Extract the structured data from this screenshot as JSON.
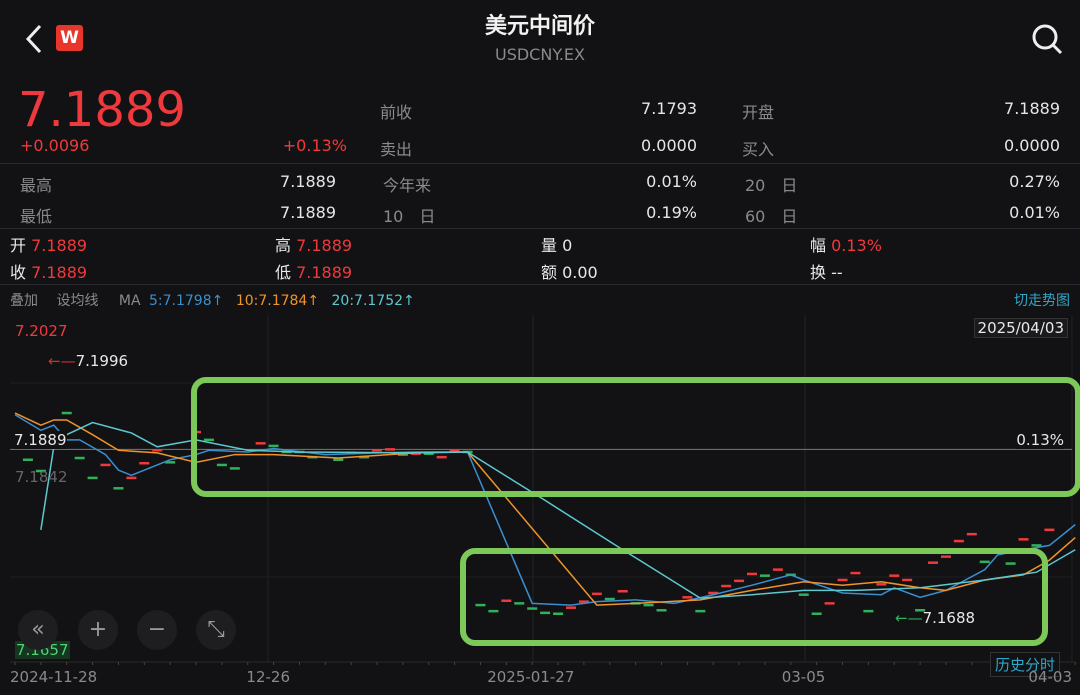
{
  "header": {
    "title": "美元中间价",
    "symbol": "USDCNY.EX",
    "logo_text": "W",
    "back_icon": "chevron-left-icon",
    "search_icon": "search-icon"
  },
  "quote": {
    "price": "7.1889",
    "change": "+0.0096",
    "change_pct": "+0.13%",
    "prev_close_label": "前收",
    "prev_close": "7.1793",
    "open_label": "开盘",
    "open": "7.1889",
    "sell_label": "卖出",
    "sell": "0.0000",
    "buy_label": "买入",
    "buy": "0.0000",
    "high_label": "最高",
    "high": "7.1889",
    "ytd_label": "今年来",
    "ytd": "0.01%",
    "d20_label": "20　日",
    "d20": "0.27%",
    "low_label": "最低",
    "low": "7.1889",
    "d10_label": "10　日",
    "d10": "0.19%",
    "d60_label": "60　日",
    "d60": "0.01%"
  },
  "ohlc": {
    "open_label": "开",
    "open": "7.1889",
    "high_label": "高",
    "high": "7.1889",
    "vol_label": "量",
    "vol": "0",
    "amp_label": "幅",
    "amp": "0.13%",
    "close_label": "收",
    "close": "7.1889",
    "low_label": "低",
    "low": "7.1889",
    "amt_label": "额",
    "amt": "0.00",
    "turn_label": "换",
    "turn": "--"
  },
  "toolbar": {
    "overlay": "叠加",
    "set_ma": "设均线",
    "ma": "MA",
    "ma5": "5:7.1798↑",
    "ma10": "10:7.1784↑",
    "ma20": "20:7.1752↑",
    "switch": "切走势图"
  },
  "colors": {
    "up": "#f0393c",
    "down": "#2fb25a",
    "ma5": "#3a8fd0",
    "ma10": "#f0932b",
    "ma20": "#5cc8d0",
    "highlight": "#7cc95a",
    "accent": "#2fa6c8"
  },
  "chart": {
    "date": "2025/04/03",
    "history_button": "历史分时",
    "zoom_buttons": [
      "«",
      "+",
      "−",
      "⤡"
    ]
  },
  "chart_data": {
    "type": "line",
    "ylim": [
      7.1657,
      7.2027
    ],
    "ytick_top": "7.2027",
    "ytick_bottom": "7.1657",
    "ytick_mid": "7.1842",
    "current_label": "7.1889",
    "current_pct": "0.13%",
    "max_label": "7.1996",
    "min_label": "7.1688",
    "x_ticks": [
      {
        "i": 0,
        "label": "2024-11-28"
      },
      {
        "i": 19.6,
        "label": "12-26"
      },
      {
        "i": 40,
        "label": "2025-01-27"
      },
      {
        "i": 61,
        "label": "03-05"
      },
      {
        "i": 82,
        "label": "04-03"
      }
    ],
    "series": [
      {
        "name": "MA5",
        "color": "#3a8fd0",
        "points": [
          [
            0,
            7.1929
          ],
          [
            2,
            7.1911
          ],
          [
            3,
            7.1917
          ],
          [
            4,
            7.19
          ],
          [
            5,
            7.19
          ],
          [
            7,
            7.1883
          ],
          [
            8,
            7.1865
          ],
          [
            9,
            7.1859
          ],
          [
            11,
            7.1871
          ],
          [
            12,
            7.1877
          ],
          [
            14,
            7.1883
          ],
          [
            15,
            7.1888
          ],
          [
            18,
            7.1886
          ],
          [
            20,
            7.189
          ],
          [
            24,
            7.1883
          ],
          [
            28,
            7.1885
          ],
          [
            31,
            7.1886
          ],
          [
            35,
            7.1886
          ],
          [
            40,
            7.1711
          ],
          [
            43,
            7.1709
          ],
          [
            45,
            7.1713
          ],
          [
            48,
            7.1715
          ],
          [
            51,
            7.1711
          ],
          [
            54,
            7.1721
          ],
          [
            57,
            7.1732
          ],
          [
            60,
            7.1744
          ],
          [
            61,
            7.1738
          ],
          [
            64,
            7.1723
          ],
          [
            67,
            7.1721
          ],
          [
            68,
            7.1729
          ],
          [
            70,
            7.1718
          ],
          [
            72,
            7.1726
          ],
          [
            75,
            7.175
          ],
          [
            76,
            7.1767
          ],
          [
            78,
            7.1773
          ],
          [
            80,
            7.1778
          ],
          [
            82,
            7.1802
          ]
        ]
      },
      {
        "name": "MA10",
        "color": "#f0932b",
        "points": [
          [
            0,
            7.1931
          ],
          [
            2,
            7.1917
          ],
          [
            3,
            7.1923
          ],
          [
            4,
            7.1923
          ],
          [
            6,
            7.1906
          ],
          [
            8,
            7.1888
          ],
          [
            11,
            7.1885
          ],
          [
            14,
            7.1874
          ],
          [
            17,
            7.1883
          ],
          [
            20,
            7.1883
          ],
          [
            25,
            7.1879
          ],
          [
            31,
            7.1885
          ],
          [
            35,
            7.1886
          ],
          [
            45,
            7.1709
          ],
          [
            48,
            7.1711
          ],
          [
            53,
            7.1715
          ],
          [
            57,
            7.1726
          ],
          [
            61,
            7.1736
          ],
          [
            64,
            7.1732
          ],
          [
            67,
            7.1736
          ],
          [
            70,
            7.1729
          ],
          [
            72,
            7.1726
          ],
          [
            75,
            7.1738
          ],
          [
            78,
            7.1744
          ],
          [
            80,
            7.1761
          ],
          [
            82,
            7.1787
          ]
        ]
      },
      {
        "name": "MA20",
        "color": "#5cc8d0",
        "points": [
          [
            2,
            7.1796
          ],
          [
            3,
            7.1892
          ],
          [
            4,
            7.1906
          ],
          [
            6,
            7.192
          ],
          [
            9,
            7.1908
          ],
          [
            11,
            7.1892
          ],
          [
            14,
            7.19
          ],
          [
            18,
            7.1888
          ],
          [
            22,
            7.1886
          ],
          [
            30,
            7.1885
          ],
          [
            35,
            7.1886
          ],
          [
            41,
            7.183
          ],
          [
            47,
            7.1773
          ],
          [
            53,
            7.1717
          ],
          [
            57,
            7.1721
          ],
          [
            61,
            7.1726
          ],
          [
            65,
            7.1726
          ],
          [
            70,
            7.1729
          ],
          [
            75,
            7.1738
          ],
          [
            79,
            7.1747
          ],
          [
            82,
            7.1773
          ]
        ]
      }
    ],
    "daily": [
      [
        1,
        7.1877,
        "down"
      ],
      [
        2,
        7.1864,
        "down"
      ],
      [
        4,
        7.1931,
        "down"
      ],
      [
        5,
        7.1879,
        "down"
      ],
      [
        6,
        7.1856,
        "down"
      ],
      [
        7,
        7.1871,
        "up"
      ],
      [
        8,
        7.1844,
        "down"
      ],
      [
        9,
        7.1856,
        "up"
      ],
      [
        10,
        7.1873,
        "up"
      ],
      [
        11,
        7.1888,
        "up"
      ],
      [
        12,
        7.1874,
        "down"
      ],
      [
        14,
        7.1909,
        "up"
      ],
      [
        15,
        7.19,
        "down"
      ],
      [
        16,
        7.1871,
        "down"
      ],
      [
        17,
        7.1867,
        "down"
      ],
      [
        19,
        7.1896,
        "up"
      ],
      [
        20,
        7.1893,
        "down"
      ],
      [
        21,
        7.1886,
        "down"
      ],
      [
        22,
        7.1886,
        "down"
      ],
      [
        23,
        7.188,
        "down"
      ],
      [
        25,
        7.1877,
        "down"
      ],
      [
        26,
        7.1885,
        "up"
      ],
      [
        27,
        7.188,
        "down"
      ],
      [
        28,
        7.1888,
        "up"
      ],
      [
        29,
        7.1889,
        "up"
      ],
      [
        30,
        7.1883,
        "down"
      ],
      [
        31,
        7.1884,
        "up"
      ],
      [
        32,
        7.1884,
        "down"
      ],
      [
        33,
        7.188,
        "up"
      ],
      [
        34,
        7.1887,
        "up"
      ],
      [
        35,
        7.1886,
        "down"
      ],
      [
        36,
        7.1709,
        "down"
      ],
      [
        37,
        7.1702,
        "down"
      ],
      [
        38,
        7.1714,
        "up"
      ],
      [
        39,
        7.1711,
        "down"
      ],
      [
        40,
        7.1705,
        "down"
      ],
      [
        41,
        7.17,
        "down"
      ],
      [
        42,
        7.1699,
        "down"
      ],
      [
        43,
        7.1706,
        "up"
      ],
      [
        44,
        7.1713,
        "up"
      ],
      [
        45,
        7.1722,
        "up"
      ],
      [
        46,
        7.1716,
        "down"
      ],
      [
        47,
        7.1725,
        "up"
      ],
      [
        48,
        7.1711,
        "down"
      ],
      [
        49,
        7.1709,
        "down"
      ],
      [
        50,
        7.1703,
        "down"
      ],
      [
        52,
        7.1718,
        "up"
      ],
      [
        53,
        7.1702,
        "down"
      ],
      [
        54,
        7.1723,
        "up"
      ],
      [
        55,
        7.1731,
        "up"
      ],
      [
        56,
        7.1737,
        "up"
      ],
      [
        57,
        7.1745,
        "up"
      ],
      [
        58,
        7.1743,
        "down"
      ],
      [
        59,
        7.175,
        "up"
      ],
      [
        60,
        7.1744,
        "down"
      ],
      [
        61,
        7.1721,
        "down"
      ],
      [
        62,
        7.1699,
        "down"
      ],
      [
        63,
        7.1711,
        "up"
      ],
      [
        64,
        7.1738,
        "up"
      ],
      [
        65,
        7.1746,
        "up"
      ],
      [
        66,
        7.1702,
        "down"
      ],
      [
        67,
        7.1733,
        "up"
      ],
      [
        68,
        7.1743,
        "up"
      ],
      [
        69,
        7.1738,
        "up"
      ],
      [
        70,
        7.1703,
        "down"
      ],
      [
        71,
        7.1758,
        "up"
      ],
      [
        72,
        7.1765,
        "up"
      ],
      [
        73,
        7.1783,
        "up"
      ],
      [
        74,
        7.1791,
        "up"
      ],
      [
        75,
        7.1759,
        "down"
      ],
      [
        77,
        7.1757,
        "down"
      ],
      [
        78,
        7.1785,
        "up"
      ],
      [
        79,
        7.1778,
        "down"
      ],
      [
        80,
        7.1796,
        "up"
      ]
    ]
  }
}
